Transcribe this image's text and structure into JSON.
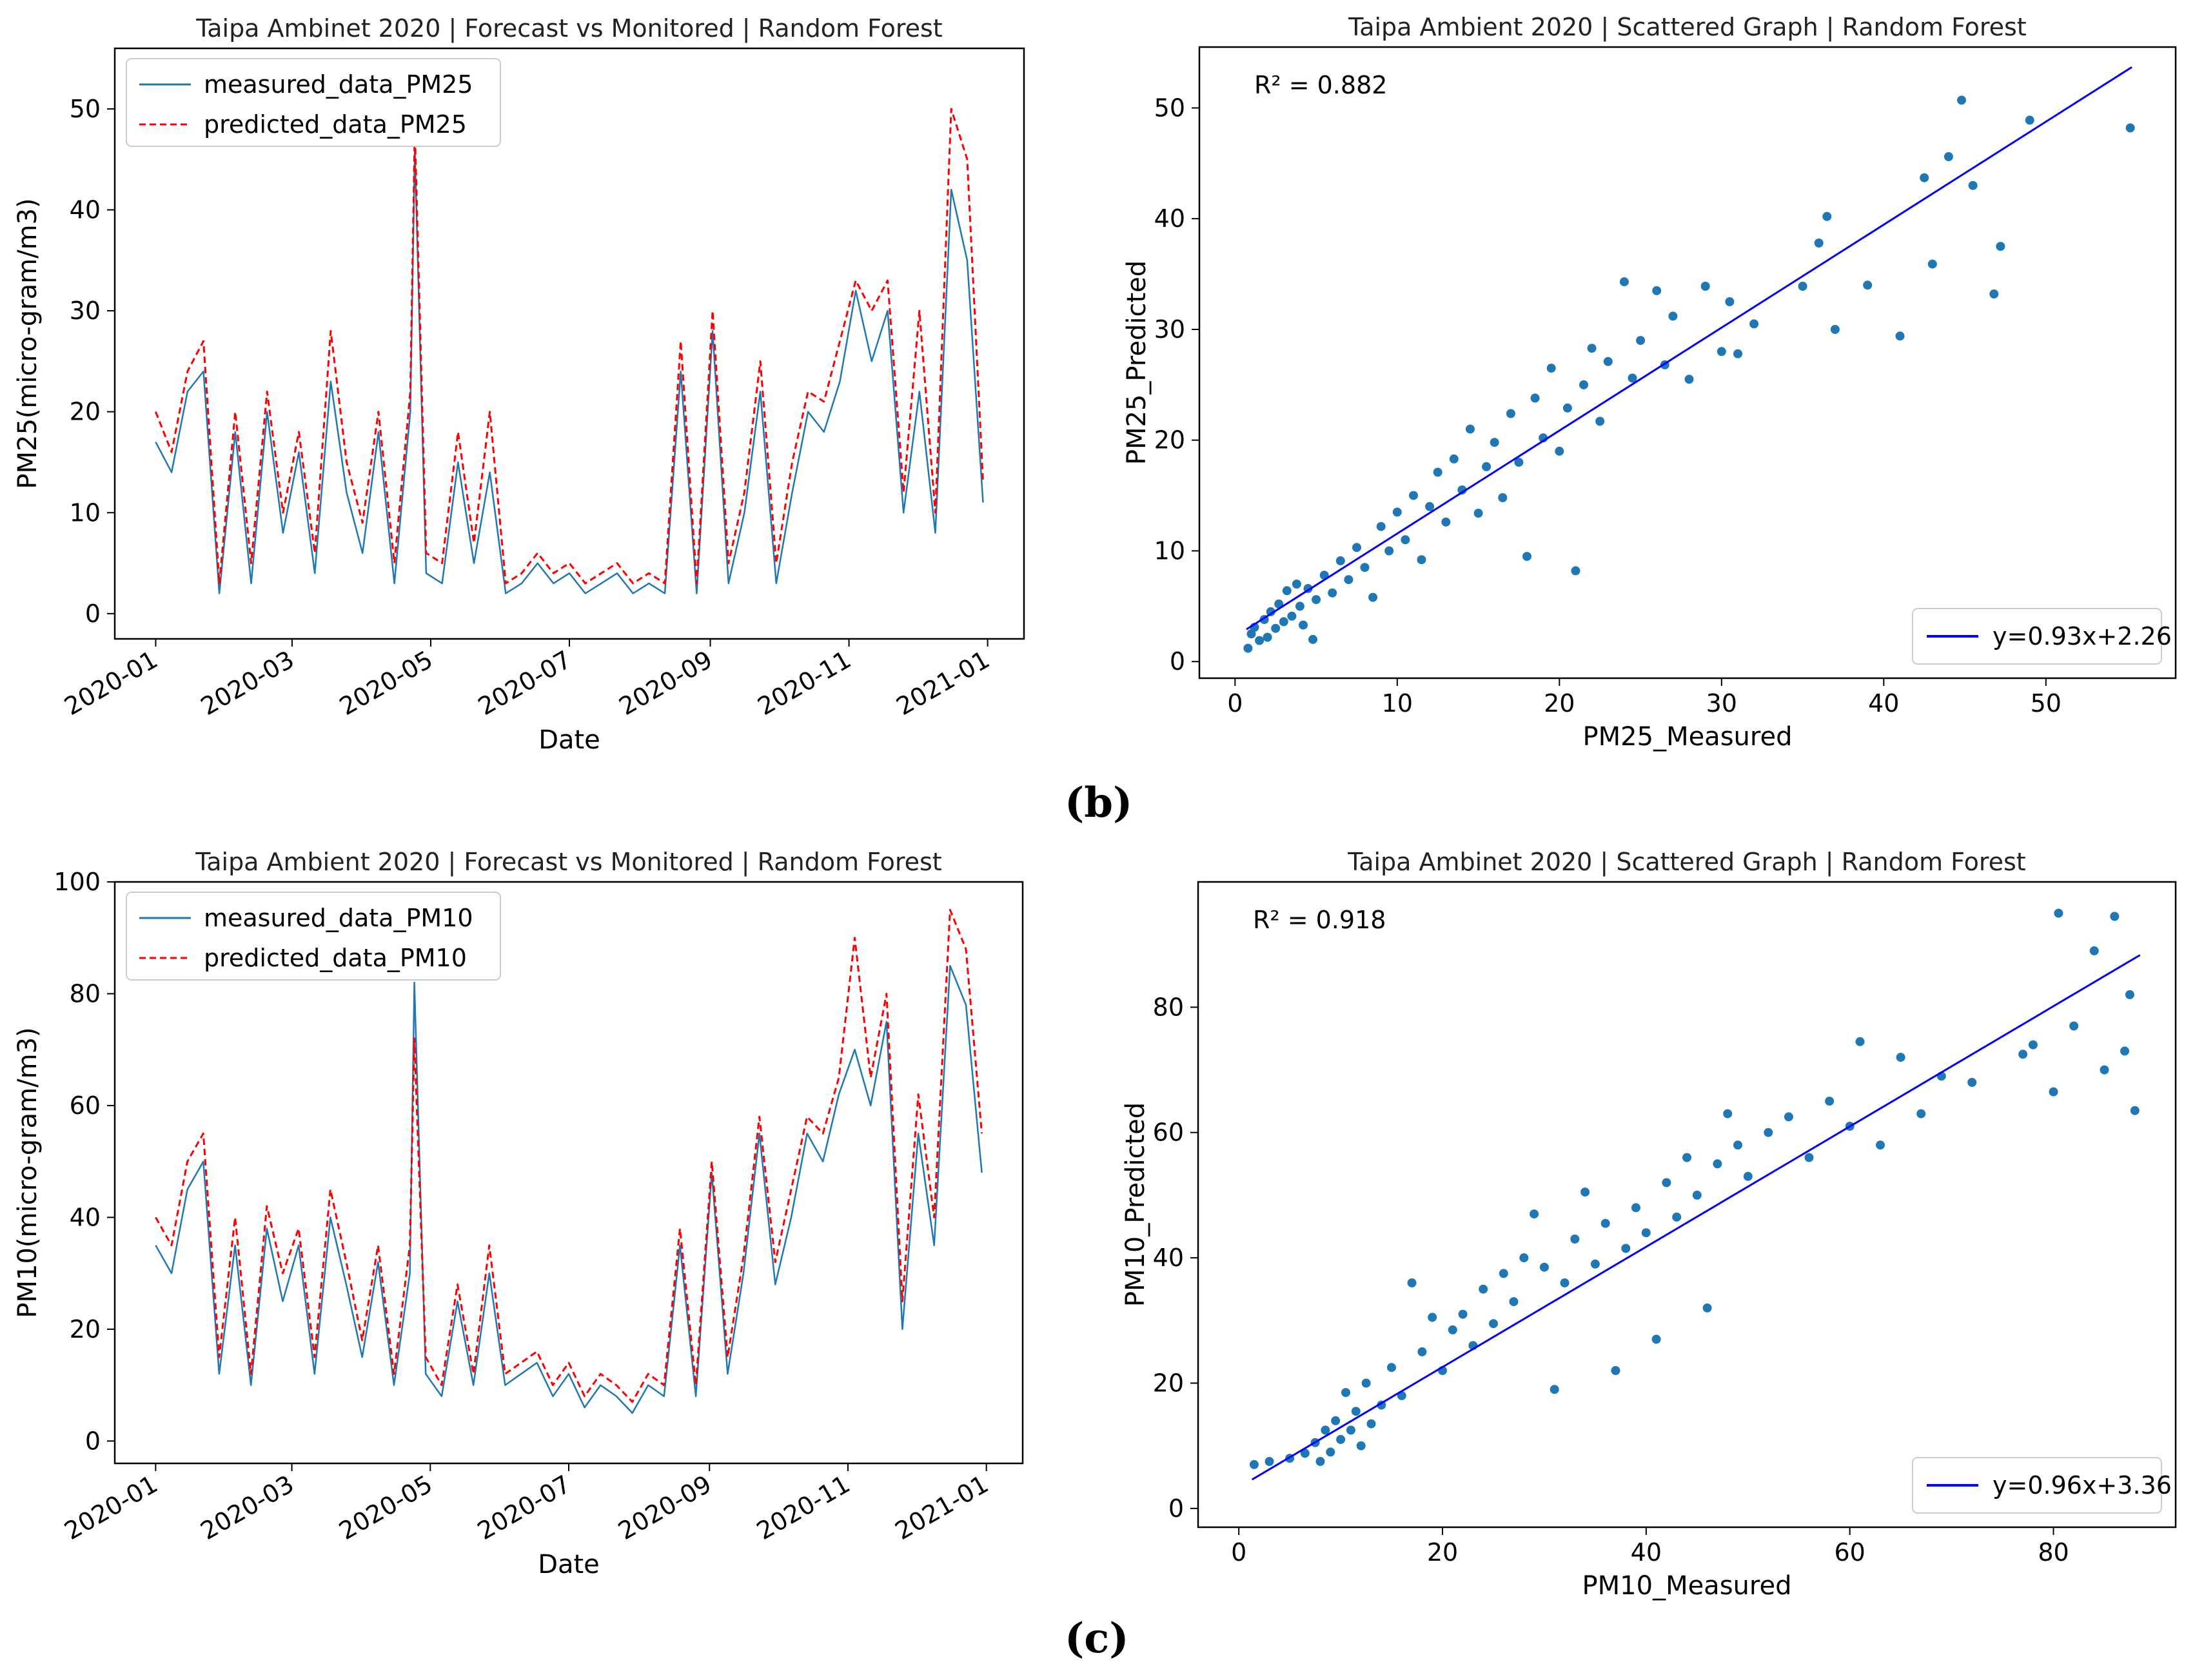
{
  "captions": {
    "b": "(b)",
    "c": "(c)"
  },
  "colors": {
    "measured_line": "#1f77b4",
    "predicted_line": "#ff0000",
    "scatter_point": "#1f77b4",
    "fit_line": "#0000ff"
  },
  "chart_data": [
    {
      "type": "line",
      "title": "Taipa Ambinet 2020 | Forecast vs Monitored | Random Forest",
      "xlabel": "Date",
      "ylabel": "PM25(micro-gram/m3)",
      "x_ticks": [
        "2020-01",
        "2020-03",
        "2020-05",
        "2020-07",
        "2020-09",
        "2020-11",
        "2021-01"
      ],
      "y_ticks": [
        0,
        10,
        20,
        30,
        40,
        50
      ],
      "xlim": [
        "2019-12-14",
        "2021-01-17"
      ],
      "ylim": [
        -2.5,
        56
      ],
      "legend": "top-left",
      "grid": false,
      "x": [
        "2020-01-01",
        "2020-01-08",
        "2020-01-15",
        "2020-01-22",
        "2020-01-29",
        "2020-02-05",
        "2020-02-12",
        "2020-02-19",
        "2020-02-26",
        "2020-03-04",
        "2020-03-11",
        "2020-03-18",
        "2020-03-25",
        "2020-04-01",
        "2020-04-08",
        "2020-04-15",
        "2020-04-22",
        "2020-04-24",
        "2020-04-29",
        "2020-05-06",
        "2020-05-13",
        "2020-05-20",
        "2020-05-27",
        "2020-06-03",
        "2020-06-10",
        "2020-06-17",
        "2020-06-24",
        "2020-07-01",
        "2020-07-08",
        "2020-07-15",
        "2020-07-22",
        "2020-07-29",
        "2020-08-05",
        "2020-08-12",
        "2020-08-19",
        "2020-08-26",
        "2020-09-02",
        "2020-09-09",
        "2020-09-16",
        "2020-09-23",
        "2020-09-30",
        "2020-10-07",
        "2020-10-14",
        "2020-10-21",
        "2020-10-28",
        "2020-11-04",
        "2020-11-11",
        "2020-11-18",
        "2020-11-25",
        "2020-12-02",
        "2020-12-09",
        "2020-12-16",
        "2020-12-23",
        "2020-12-30"
      ],
      "series": [
        {
          "name": "measured_data_PM25",
          "style": "solid",
          "values": [
            17,
            14,
            22,
            24,
            2,
            18,
            3,
            20,
            8,
            16,
            4,
            23,
            12,
            6,
            18,
            3,
            20,
            46,
            4,
            3,
            15,
            5,
            14,
            2,
            3,
            5,
            3,
            4,
            2,
            3,
            4,
            2,
            3,
            2,
            24,
            2,
            28,
            3,
            10,
            22,
            3,
            12,
            20,
            18,
            23,
            32,
            25,
            30,
            10,
            22,
            8,
            42,
            35,
            11
          ]
        },
        {
          "name": "predicted_data_PM25",
          "style": "dashed",
          "values": [
            20,
            16,
            24,
            27,
            3,
            20,
            5,
            22,
            10,
            18,
            6,
            28,
            15,
            9,
            20,
            5,
            22,
            48,
            6,
            5,
            18,
            7,
            20,
            3,
            4,
            6,
            4,
            5,
            3,
            4,
            5,
            3,
            4,
            3,
            27,
            3,
            30,
            5,
            12,
            25,
            5,
            15,
            22,
            21,
            27,
            33,
            30,
            33,
            12,
            30,
            10,
            50,
            45,
            13
          ]
        }
      ]
    },
    {
      "type": "scatter",
      "title": "Taipa Ambient 2020 | Scattered Graph | Random Forest",
      "xlabel": "PM25_Measured",
      "ylabel": "PM25_Predicted",
      "annotation": "R² = 0.882",
      "fit_label": "y=0.93x+2.26",
      "fit": {
        "slope": 0.93,
        "intercept": 2.26,
        "x_range": [
          0.7,
          55.3
        ]
      },
      "x_ticks": [
        0,
        10,
        20,
        30,
        40,
        50
      ],
      "y_ticks": [
        0,
        10,
        20,
        30,
        40,
        50
      ],
      "xlim": [
        -2.2,
        58
      ],
      "ylim": [
        -1.5,
        55.5
      ],
      "legend": "bottom-right",
      "grid": false,
      "points": [
        [
          0.8,
          1.2
        ],
        [
          1.0,
          2.5
        ],
        [
          1.2,
          3.1
        ],
        [
          1.5,
          1.9
        ],
        [
          1.8,
          3.8
        ],
        [
          2.0,
          2.2
        ],
        [
          2.2,
          4.5
        ],
        [
          2.5,
          3.0
        ],
        [
          2.7,
          5.2
        ],
        [
          3.0,
          3.6
        ],
        [
          3.2,
          6.4
        ],
        [
          3.5,
          4.1
        ],
        [
          3.8,
          7.0
        ],
        [
          4.0,
          5.0
        ],
        [
          4.2,
          3.3
        ],
        [
          4.5,
          6.6
        ],
        [
          4.8,
          2.0
        ],
        [
          5.0,
          5.6
        ],
        [
          5.5,
          7.8
        ],
        [
          6.0,
          6.2
        ],
        [
          6.5,
          9.1
        ],
        [
          7.0,
          7.4
        ],
        [
          7.5,
          10.3
        ],
        [
          8.0,
          8.5
        ],
        [
          8.5,
          5.8
        ],
        [
          9.0,
          12.2
        ],
        [
          9.5,
          10.0
        ],
        [
          10.0,
          13.5
        ],
        [
          10.5,
          11.0
        ],
        [
          11.0,
          15.0
        ],
        [
          11.5,
          9.2
        ],
        [
          12.0,
          14.0
        ],
        [
          12.5,
          17.1
        ],
        [
          13.0,
          12.6
        ],
        [
          13.5,
          18.3
        ],
        [
          14.0,
          15.5
        ],
        [
          14.5,
          21.0
        ],
        [
          15.0,
          13.4
        ],
        [
          15.5,
          17.6
        ],
        [
          16.0,
          19.8
        ],
        [
          16.5,
          14.8
        ],
        [
          17.0,
          22.4
        ],
        [
          17.5,
          18.0
        ],
        [
          18.0,
          9.5
        ],
        [
          18.5,
          23.8
        ],
        [
          19.0,
          20.2
        ],
        [
          19.5,
          26.5
        ],
        [
          20.0,
          19.0
        ],
        [
          20.5,
          22.9
        ],
        [
          21.0,
          8.2
        ],
        [
          21.5,
          25.0
        ],
        [
          22.0,
          28.3
        ],
        [
          22.5,
          21.7
        ],
        [
          23.0,
          27.1
        ],
        [
          24.0,
          34.3
        ],
        [
          24.5,
          25.6
        ],
        [
          25.0,
          29.0
        ],
        [
          26.0,
          33.5
        ],
        [
          26.5,
          26.8
        ],
        [
          27.0,
          31.2
        ],
        [
          28.0,
          25.5
        ],
        [
          29.0,
          33.9
        ],
        [
          30.0,
          28.0
        ],
        [
          30.5,
          32.5
        ],
        [
          31.0,
          27.8
        ],
        [
          32.0,
          30.5
        ],
        [
          35.0,
          33.9
        ],
        [
          36.0,
          37.8
        ],
        [
          36.5,
          40.2
        ],
        [
          37.0,
          30.0
        ],
        [
          39.0,
          34.0
        ],
        [
          41.0,
          29.4
        ],
        [
          42.5,
          43.7
        ],
        [
          43.0,
          35.9
        ],
        [
          44.0,
          45.6
        ],
        [
          44.8,
          50.7
        ],
        [
          45.5,
          43.0
        ],
        [
          46.8,
          33.2
        ],
        [
          47.2,
          37.5
        ],
        [
          49.0,
          48.9
        ],
        [
          55.2,
          48.2
        ]
      ]
    },
    {
      "type": "line",
      "title": "Taipa Ambient 2020 | Forecast vs Monitored | Random Forest",
      "xlabel": "Date",
      "ylabel": "PM10(micro-gram/m3)",
      "x_ticks": [
        "2020-01",
        "2020-03",
        "2020-05",
        "2020-07",
        "2020-09",
        "2020-11",
        "2021-01"
      ],
      "y_ticks": [
        0,
        20,
        40,
        60,
        80,
        100
      ],
      "xlim": [
        "2019-12-14",
        "2021-01-17"
      ],
      "ylim": [
        -4,
        100
      ],
      "legend": "top-left",
      "grid": false,
      "x": [
        "2020-01-01",
        "2020-01-08",
        "2020-01-15",
        "2020-01-22",
        "2020-01-29",
        "2020-02-05",
        "2020-02-12",
        "2020-02-19",
        "2020-02-26",
        "2020-03-04",
        "2020-03-11",
        "2020-03-18",
        "2020-03-25",
        "2020-04-01",
        "2020-04-08",
        "2020-04-15",
        "2020-04-22",
        "2020-04-24",
        "2020-04-29",
        "2020-05-06",
        "2020-05-13",
        "2020-05-20",
        "2020-05-27",
        "2020-06-03",
        "2020-06-10",
        "2020-06-17",
        "2020-06-24",
        "2020-07-01",
        "2020-07-08",
        "2020-07-15",
        "2020-07-22",
        "2020-07-29",
        "2020-08-05",
        "2020-08-12",
        "2020-08-19",
        "2020-08-26",
        "2020-09-02",
        "2020-09-09",
        "2020-09-16",
        "2020-09-23",
        "2020-09-30",
        "2020-10-07",
        "2020-10-14",
        "2020-10-21",
        "2020-10-28",
        "2020-11-04",
        "2020-11-11",
        "2020-11-18",
        "2020-11-25",
        "2020-12-02",
        "2020-12-09",
        "2020-12-16",
        "2020-12-23",
        "2020-12-30"
      ],
      "series": [
        {
          "name": "measured_data_PM10",
          "style": "solid",
          "values": [
            35,
            30,
            45,
            50,
            12,
            35,
            10,
            38,
            25,
            35,
            12,
            40,
            28,
            15,
            32,
            10,
            30,
            82,
            12,
            8,
            25,
            10,
            30,
            10,
            12,
            14,
            8,
            12,
            6,
            10,
            8,
            5,
            10,
            8,
            35,
            8,
            48,
            12,
            30,
            55,
            28,
            40,
            55,
            50,
            62,
            70,
            60,
            75,
            20,
            55,
            35,
            85,
            78,
            48
          ]
        },
        {
          "name": "predicted_data_PM10",
          "style": "dashed",
          "values": [
            40,
            35,
            50,
            55,
            15,
            40,
            12,
            42,
            30,
            38,
            15,
            45,
            32,
            18,
            35,
            12,
            35,
            72,
            15,
            10,
            28,
            12,
            35,
            12,
            14,
            16,
            10,
            14,
            8,
            12,
            10,
            7,
            12,
            10,
            38,
            10,
            50,
            15,
            33,
            58,
            32,
            45,
            58,
            55,
            65,
            90,
            65,
            80,
            25,
            62,
            40,
            95,
            88,
            55
          ]
        }
      ]
    },
    {
      "type": "scatter",
      "title": "Taipa Ambinet 2020 | Scattered Graph | Random Forest",
      "xlabel": "PM10_Measured",
      "ylabel": "PM10_Predicted",
      "annotation": "R² = 0.918",
      "fit_label": "y=0.96x+3.36",
      "fit": {
        "slope": 0.96,
        "intercept": 3.36,
        "x_range": [
          1.3,
          88.5
        ]
      },
      "x_ticks": [
        0,
        20,
        40,
        60,
        80
      ],
      "y_ticks": [
        0,
        20,
        40,
        60,
        80
      ],
      "xlim": [
        -4,
        92
      ],
      "ylim": [
        -3,
        100
      ],
      "legend": "bottom-right",
      "grid": false,
      "points": [
        [
          1.5,
          7.0
        ],
        [
          3.0,
          7.5
        ],
        [
          5.0,
          8.0
        ],
        [
          6.5,
          8.8
        ],
        [
          7.5,
          10.5
        ],
        [
          8.0,
          7.5
        ],
        [
          8.5,
          12.5
        ],
        [
          9.0,
          9.0
        ],
        [
          9.5,
          14.0
        ],
        [
          10.0,
          11.0
        ],
        [
          10.5,
          18.5
        ],
        [
          11.0,
          12.5
        ],
        [
          11.5,
          15.5
        ],
        [
          12.0,
          10.0
        ],
        [
          12.5,
          20.0
        ],
        [
          13.0,
          13.5
        ],
        [
          14.0,
          16.5
        ],
        [
          15.0,
          22.5
        ],
        [
          16.0,
          18.0
        ],
        [
          17.0,
          36.0
        ],
        [
          18.0,
          25.0
        ],
        [
          19.0,
          30.5
        ],
        [
          20.0,
          22.0
        ],
        [
          21.0,
          28.5
        ],
        [
          22.0,
          31.0
        ],
        [
          23.0,
          26.0
        ],
        [
          24.0,
          35.0
        ],
        [
          25.0,
          29.5
        ],
        [
          26.0,
          37.5
        ],
        [
          27.0,
          33.0
        ],
        [
          28.0,
          40.0
        ],
        [
          29.0,
          47.0
        ],
        [
          30.0,
          38.5
        ],
        [
          31.0,
          19.0
        ],
        [
          32.0,
          36.0
        ],
        [
          33.0,
          43.0
        ],
        [
          34.0,
          50.5
        ],
        [
          35.0,
          39.0
        ],
        [
          36.0,
          45.5
        ],
        [
          37.0,
          22.0
        ],
        [
          38.0,
          41.5
        ],
        [
          39.0,
          48.0
        ],
        [
          40.0,
          44.0
        ],
        [
          41.0,
          27.0
        ],
        [
          42.0,
          52.0
        ],
        [
          43.0,
          46.5
        ],
        [
          44.0,
          56.0
        ],
        [
          45.0,
          50.0
        ],
        [
          46.0,
          32.0
        ],
        [
          47.0,
          55.0
        ],
        [
          48.0,
          63.0
        ],
        [
          49.0,
          58.0
        ],
        [
          50.0,
          53.0
        ],
        [
          52.0,
          60.0
        ],
        [
          54.0,
          62.5
        ],
        [
          56.0,
          56.0
        ],
        [
          58.0,
          65.0
        ],
        [
          60.0,
          61.0
        ],
        [
          61.0,
          74.5
        ],
        [
          63.0,
          58.0
        ],
        [
          65.0,
          72.0
        ],
        [
          67.0,
          63.0
        ],
        [
          69.0,
          69.0
        ],
        [
          72.0,
          68.0
        ],
        [
          77.0,
          72.5
        ],
        [
          78.0,
          74.0
        ],
        [
          80.0,
          66.5
        ],
        [
          80.5,
          95.0
        ],
        [
          82.0,
          77.0
        ],
        [
          84.0,
          89.0
        ],
        [
          85.0,
          70.0
        ],
        [
          86.0,
          94.5
        ],
        [
          87.0,
          73.0
        ],
        [
          87.5,
          82.0
        ],
        [
          88.0,
          63.5
        ]
      ]
    }
  ]
}
